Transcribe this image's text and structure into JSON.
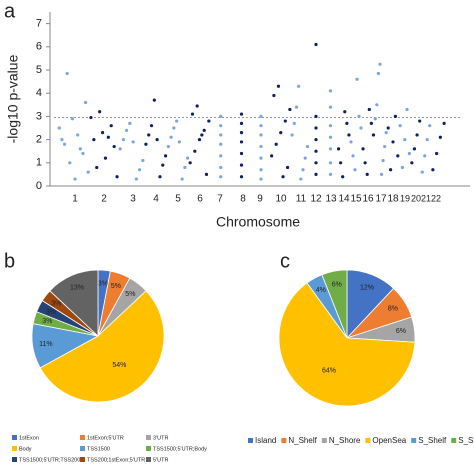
{
  "chart_data": [
    {
      "type": "scatter",
      "panel": "a",
      "ylabel": "-log10 p-value",
      "xlabel": "Chromosome",
      "categories": [
        "1",
        "2",
        "3",
        "4",
        "5",
        "6",
        "7",
        "8",
        "9",
        "10",
        "11",
        "12",
        "13",
        "14",
        "15",
        "16",
        "17",
        "18",
        "19",
        "20",
        "21",
        "22"
      ],
      "points": [
        [
          4.85,
          3.6,
          2.9,
          2.5,
          2.2,
          1.8,
          1.4,
          1.0,
          0.6,
          0.3,
          2.0,
          1.6
        ],
        [
          3.2,
          2.95,
          2.6,
          2.3,
          2.0,
          1.7,
          1.2,
          0.8,
          0.4,
          2.1
        ],
        [
          2.7,
          2.4,
          2.0,
          1.6,
          1.1,
          0.7,
          0.3,
          1.9
        ],
        [
          3.7,
          2.6,
          2.2,
          1.8,
          1.3,
          0.9,
          0.4,
          2.0
        ],
        [
          2.8,
          2.5,
          2.1,
          1.7,
          1.2,
          0.8,
          0.3,
          1.9
        ],
        [
          3.45,
          3.1,
          2.8,
          2.4,
          2.0,
          1.5,
          1.0,
          0.5,
          2.2
        ],
        [
          3.0,
          2.6,
          2.2,
          1.8,
          1.3,
          0.8,
          0.4
        ],
        [
          3.1,
          2.7,
          2.3,
          1.9,
          1.4,
          0.9,
          0.4
        ],
        [
          3.0,
          2.6,
          2.2,
          1.7,
          1.2,
          0.7,
          0.3
        ],
        [
          4.3,
          3.9,
          3.3,
          2.8,
          2.3,
          1.8,
          1.3,
          0.8,
          0.4
        ],
        [
          4.3,
          3.4,
          2.7,
          2.2,
          1.7,
          1.2,
          0.7,
          0.3
        ],
        [
          6.1,
          3.0,
          2.5,
          2.0,
          1.5,
          1.0,
          0.5
        ],
        [
          4.1,
          3.4,
          2.6,
          2.1,
          1.6,
          1.0,
          0.5
        ],
        [
          3.2,
          2.7,
          2.2,
          1.6,
          1.0,
          0.4
        ],
        [
          4.6,
          3.0,
          2.5,
          1.9,
          1.3,
          0.7
        ],
        [
          3.3,
          2.7,
          2.2,
          1.6,
          1.0,
          0.5
        ],
        [
          5.25,
          4.85,
          3.5,
          2.9,
          2.3,
          1.7,
          1.1,
          0.5
        ],
        [
          3.0,
          2.5,
          1.9,
          1.3,
          0.7
        ],
        [
          3.3,
          2.6,
          2.0,
          1.4,
          0.8
        ],
        [
          2.8,
          2.2,
          1.6,
          1.0
        ],
        [
          2.6,
          2.0,
          1.3,
          0.6
        ],
        [
          2.7,
          2.1,
          1.4,
          0.7
        ]
      ],
      "colors": [
        "#7aa6e0",
        "#0f2060"
      ],
      "threshold": 2.95,
      "ylim": [
        0,
        7.5
      ],
      "yticks": [
        0,
        1,
        2,
        3,
        4,
        5,
        6,
        7
      ]
    },
    {
      "type": "pie",
      "panel": "b",
      "categories": [
        "1stExon",
        "1stExon;5'UTR",
        "3'UTR",
        "Body",
        "TSS1500",
        "TSS1500;5'UTR;Body",
        "TSS1500;5'UTR;TSS200",
        "TSS200;1stExon;5'UTR",
        "5'UTR"
      ],
      "values": [
        3,
        5,
        5,
        54,
        11,
        3,
        3,
        3,
        13
      ],
      "value_labels": [
        "3%",
        "5%",
        "5%",
        "54%",
        "11%",
        "3%",
        "3%",
        "3%",
        "13%"
      ],
      "colors": [
        "#4472c4",
        "#ed7d31",
        "#a5a5a5",
        "#ffc000",
        "#5b9bd5",
        "#70ad47",
        "#264478",
        "#9e480e",
        "#636363"
      ],
      "legend": "bottom"
    },
    {
      "type": "pie",
      "panel": "c",
      "categories": [
        "Island",
        "N_Shelf",
        "N_Shore",
        "OpenSea",
        "S_Shelf",
        "S_Shore"
      ],
      "values": [
        12,
        8,
        6,
        64,
        4,
        6
      ],
      "value_labels": [
        "12%",
        "8%",
        "6%",
        "64%",
        "4%",
        "6%"
      ],
      "colors": [
        "#4472c4",
        "#ed7d31",
        "#a5a5a5",
        "#ffc000",
        "#5b9bd5",
        "#70ad47"
      ],
      "legend": "bottom"
    }
  ]
}
